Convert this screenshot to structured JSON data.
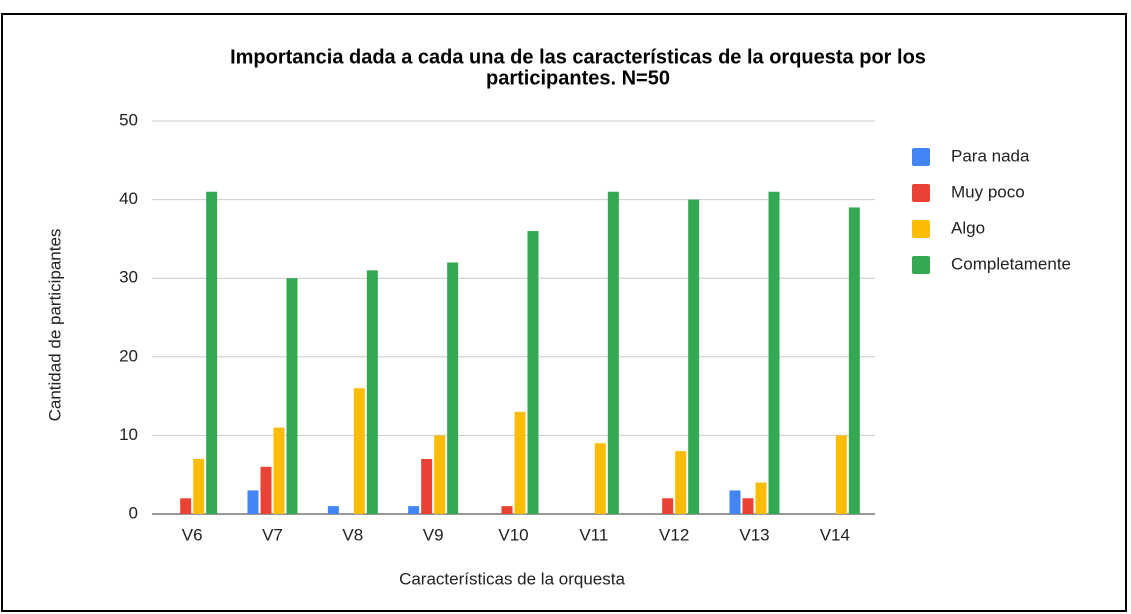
{
  "chart_data": {
    "type": "bar",
    "title_lines": [
      "Importancia dada a cada una de las características de la orquesta por los",
      "participantes. N=50"
    ],
    "xlabel": "Características de la orquesta",
    "ylabel": "Cantidad de participantes",
    "categories": [
      "V6",
      "V7",
      "V8",
      "V9",
      "V10",
      "V11",
      "V12",
      "V13",
      "V14"
    ],
    "series": [
      {
        "name": "Para nada",
        "color": "#4285f4",
        "values": [
          0,
          3,
          1,
          1,
          0,
          0,
          0,
          3,
          0
        ]
      },
      {
        "name": "Muy poco",
        "color": "#ea4335",
        "values": [
          2,
          6,
          0,
          7,
          1,
          0,
          2,
          2,
          0
        ]
      },
      {
        "name": "Algo",
        "color": "#fbbc04",
        "values": [
          7,
          11,
          16,
          10,
          13,
          9,
          8,
          4,
          10
        ]
      },
      {
        "name": "Completamente",
        "color": "#34a853",
        "values": [
          41,
          30,
          31,
          32,
          36,
          41,
          40,
          41,
          39
        ]
      }
    ],
    "ylim": [
      0,
      50
    ],
    "yticks": [
      0,
      10,
      20,
      30,
      40,
      50
    ],
    "grid": true,
    "legend": "right"
  }
}
